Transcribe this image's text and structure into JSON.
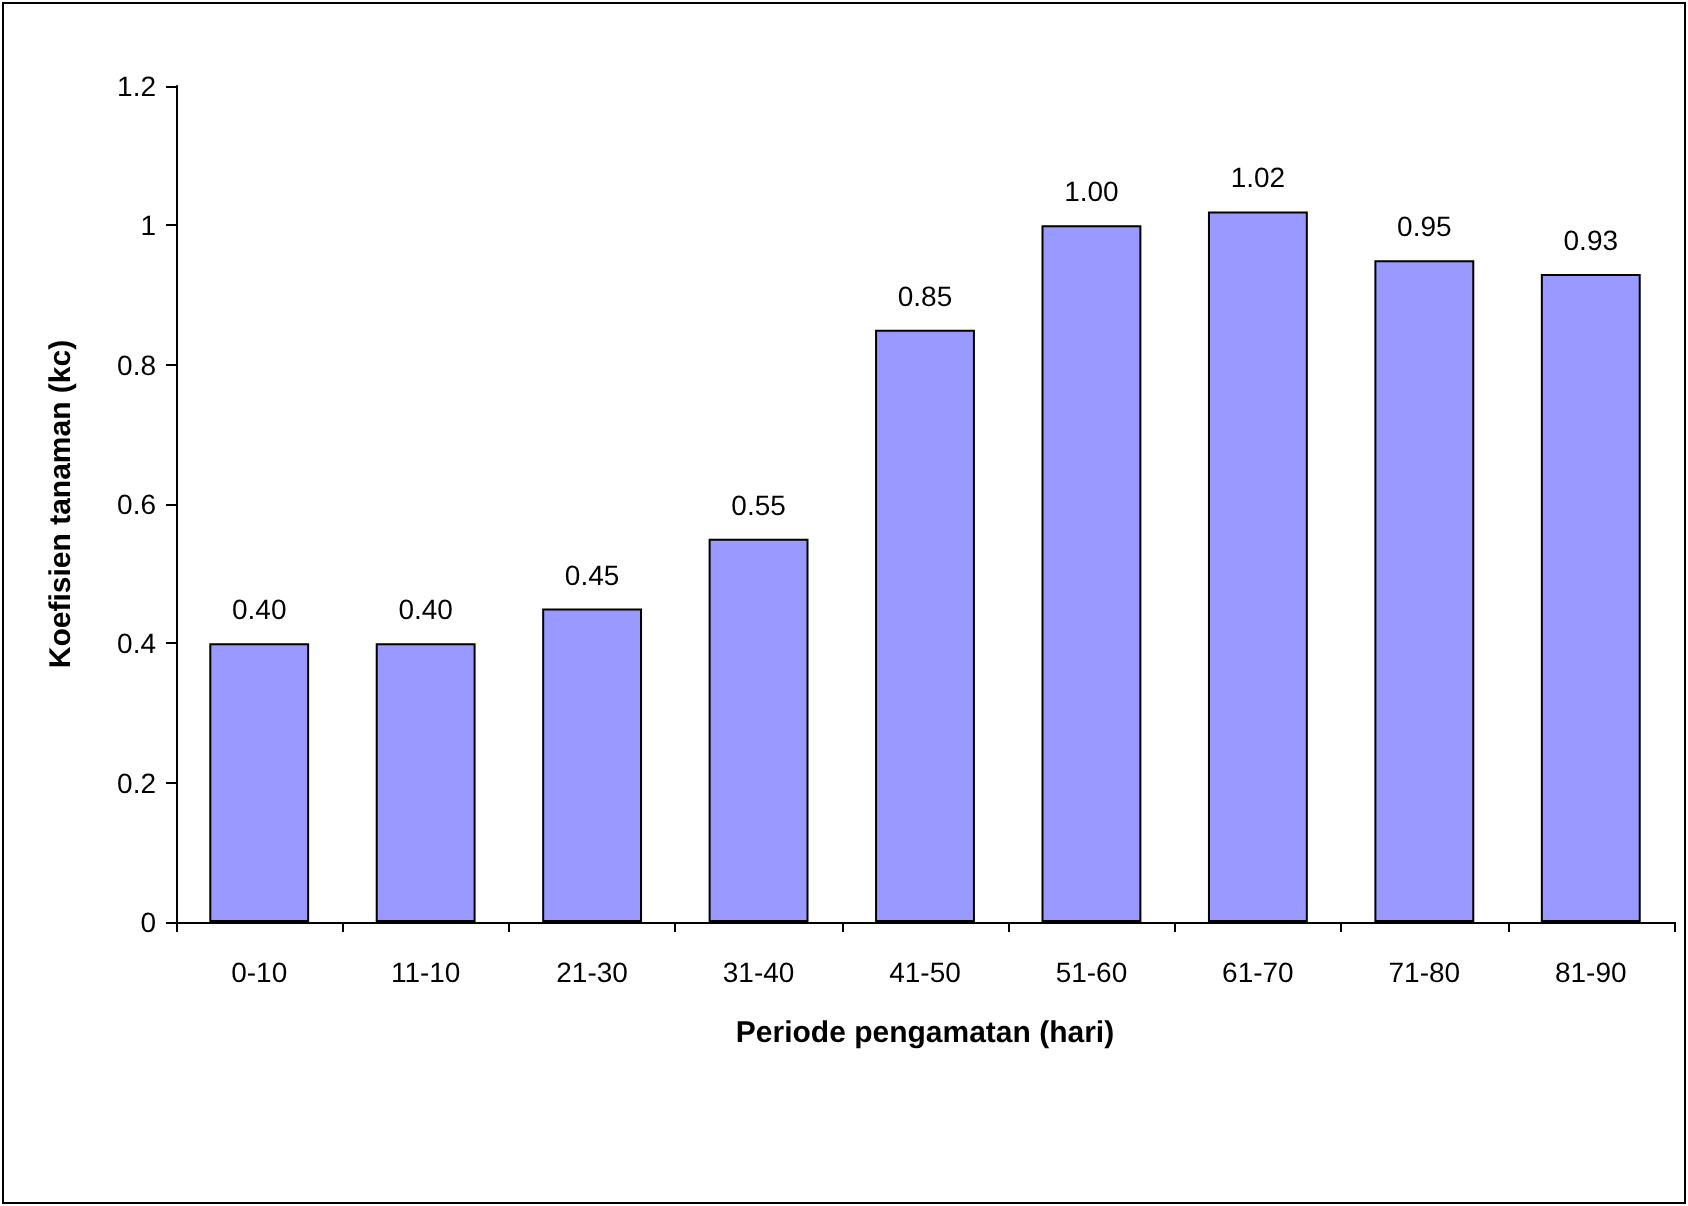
{
  "chart_data": {
    "type": "bar",
    "xlabel": "Periode pengamatan (hari)",
    "ylabel": "Koefisien tanaman (kc)",
    "categories": [
      "0-10",
      "11-10",
      "21-30",
      "31-40",
      "41-50",
      "51-60",
      "61-70",
      "71-80",
      "81-90"
    ],
    "values": [
      0.4,
      0.4,
      0.45,
      0.55,
      0.85,
      1.0,
      1.02,
      0.95,
      0.93
    ],
    "value_labels": [
      "0.40",
      "0.40",
      "0.45",
      "0.55",
      "0.85",
      "1.00",
      "1.02",
      "0.95",
      "0.93"
    ],
    "color": "#9999ff",
    "ylim": [
      0,
      1.2
    ],
    "yticks": [
      0,
      0.2,
      0.4,
      0.6,
      0.8,
      1,
      1.2
    ],
    "grid": false
  }
}
